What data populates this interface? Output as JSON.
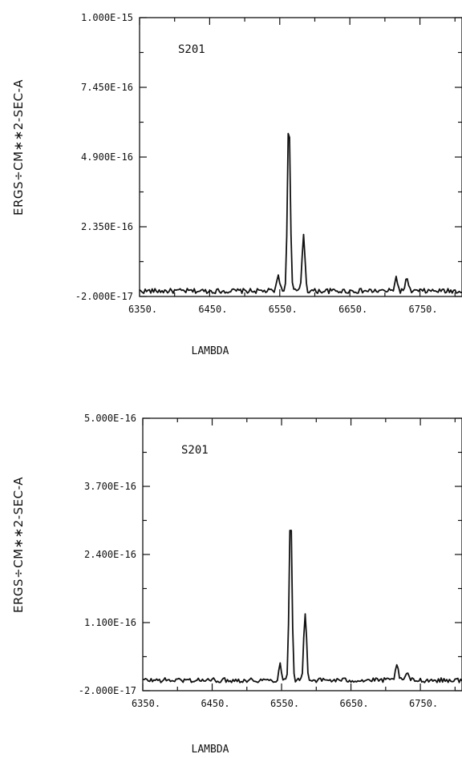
{
  "colors": {
    "ink": "#111111",
    "background": "#ffffff"
  },
  "chart_data": [
    {
      "type": "line",
      "title": "",
      "panel_label": "S201",
      "xlabel": "LAMBDA",
      "ylabel": "ERGS÷CM∗∗2-SEC-A",
      "xlim": [
        6350,
        6810
      ],
      "ylim": [
        -2e-17,
        1e-15
      ],
      "xticks": [
        6350,
        6450,
        6550,
        6650,
        6750
      ],
      "xtick_labels": [
        "6350.",
        "6450.",
        "6550.",
        "6650.",
        "6750."
      ],
      "yticks": [
        -2e-17,
        2.35e-16,
        4.9e-16,
        7.45e-16,
        1e-15
      ],
      "ytick_labels": [
        "-2.000E-17",
        "2.350E-16",
        "4.900E-16",
        "7.450E-16",
        "1.000E-15"
      ],
      "continuum": 0.0,
      "lines": [
        {
          "x": 6548,
          "peak": 6e-17,
          "width": 2.0
        },
        {
          "x": 6563,
          "peak": 6.45e-16,
          "width": 2.0
        },
        {
          "x": 6584,
          "peak": 2.1e-16,
          "width": 2.0
        },
        {
          "x": 6716,
          "peak": 5e-17,
          "width": 2.0
        },
        {
          "x": 6731,
          "peak": 4.5e-17,
          "width": 2.0
        }
      ],
      "noise_amplitude": 9e-18,
      "x_step": 2
    },
    {
      "type": "line",
      "title": "",
      "panel_label": "S201",
      "xlabel": "LAMBDA",
      "ylabel": "ERGS÷CM∗∗2-SEC-A",
      "xlim": [
        6350,
        6810
      ],
      "ylim": [
        -2e-17,
        5e-16
      ],
      "xticks": [
        6350,
        6450,
        6550,
        6650,
        6750
      ],
      "xtick_labels": [
        "6350.",
        "6450.",
        "6550.",
        "6650.",
        "6750."
      ],
      "yticks": [
        -2e-17,
        1.1e-16,
        2.4e-16,
        3.7e-16,
        5e-16
      ],
      "ytick_labels": [
        "-2.000E-17",
        "1.100E-16",
        "2.400E-16",
        "3.700E-16",
        "5.000E-16"
      ],
      "continuum": 0.0,
      "lines": [
        {
          "x": 6548,
          "peak": 3.3e-17,
          "width": 1.8
        },
        {
          "x": 6563,
          "peak": 3.23e-16,
          "width": 2.0
        },
        {
          "x": 6584,
          "peak": 1.28e-16,
          "width": 2.0
        },
        {
          "x": 6716,
          "peak": 3.3e-17,
          "width": 1.8
        },
        {
          "x": 6731,
          "peak": 1.7e-17,
          "width": 1.8
        }
      ],
      "noise_amplitude": 4.5e-18,
      "x_step": 2
    }
  ]
}
